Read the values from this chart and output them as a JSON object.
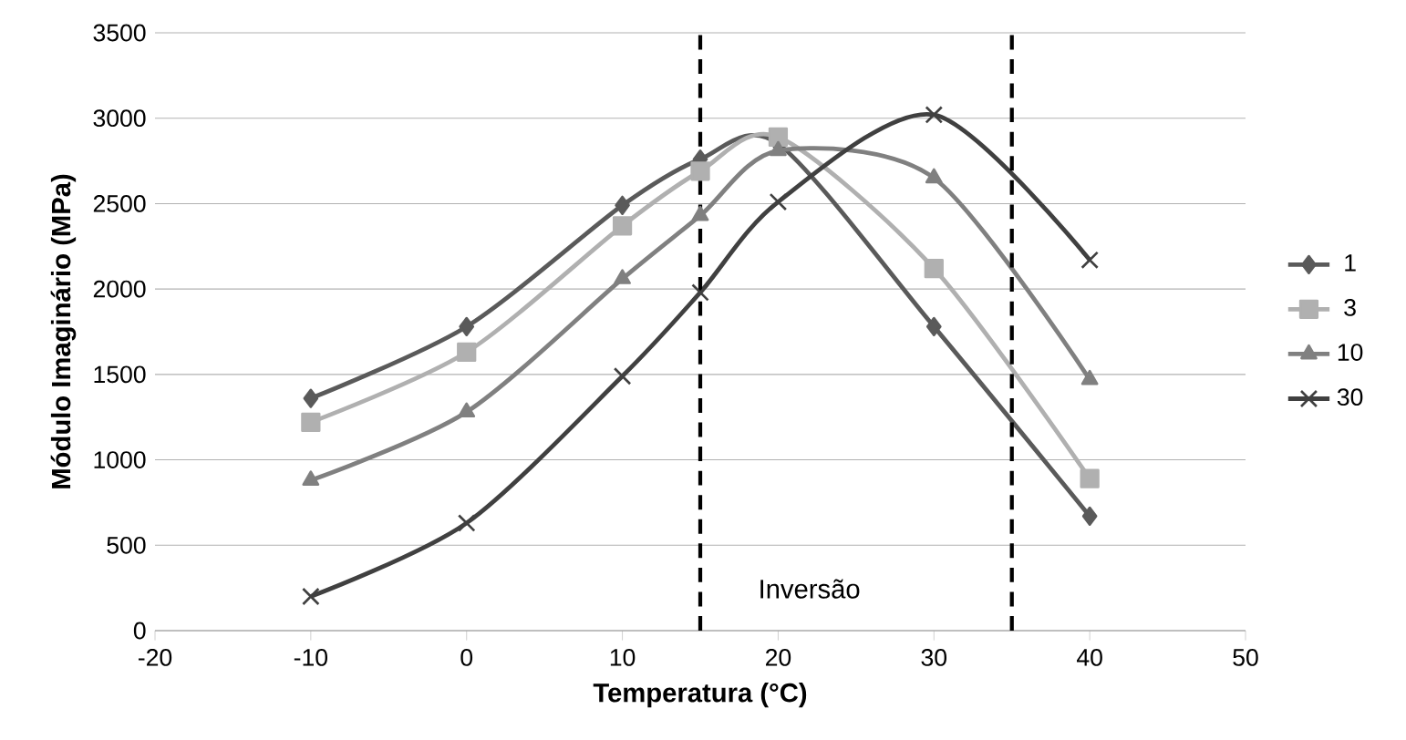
{
  "chart_data": {
    "type": "line",
    "xlabel": "Temperatura (°C)",
    "ylabel": "Módulo Imaginário (MPa)",
    "x": [
      -10,
      0,
      10,
      15,
      20,
      30,
      40
    ],
    "series": [
      {
        "name": "1",
        "color": "#5a5a5a",
        "marker": "diamond",
        "values": [
          1360,
          1780,
          2490,
          2760,
          2850,
          1780,
          670
        ]
      },
      {
        "name": "3",
        "color": "#b0b0b0",
        "marker": "square",
        "values": [
          1220,
          1630,
          2370,
          2690,
          2890,
          2120,
          890
        ]
      },
      {
        "name": "10",
        "color": "#808080",
        "marker": "triangle",
        "values": [
          880,
          1280,
          2060,
          2430,
          2810,
          2650,
          1470
        ]
      },
      {
        "name": "30",
        "color": "#404040",
        "marker": "cross",
        "values": [
          200,
          630,
          1490,
          1980,
          2510,
          3020,
          2170
        ]
      }
    ],
    "xlim": [
      -20,
      50
    ],
    "xticks": [
      -20,
      -10,
      0,
      10,
      20,
      30,
      40,
      50
    ],
    "ylim": [
      0,
      3500
    ],
    "yticks": [
      0,
      500,
      1000,
      1500,
      2000,
      2500,
      3000,
      3500
    ],
    "grid": "y",
    "legend": "right",
    "line_style": "solid",
    "ref_lines": [
      {
        "axis": "x",
        "value": 15,
        "color": "#000000",
        "line_style": "dashed"
      },
      {
        "axis": "x",
        "value": 35,
        "color": "#000000",
        "line_style": "dashed"
      }
    ],
    "annotations": [
      "Inversão"
    ]
  }
}
